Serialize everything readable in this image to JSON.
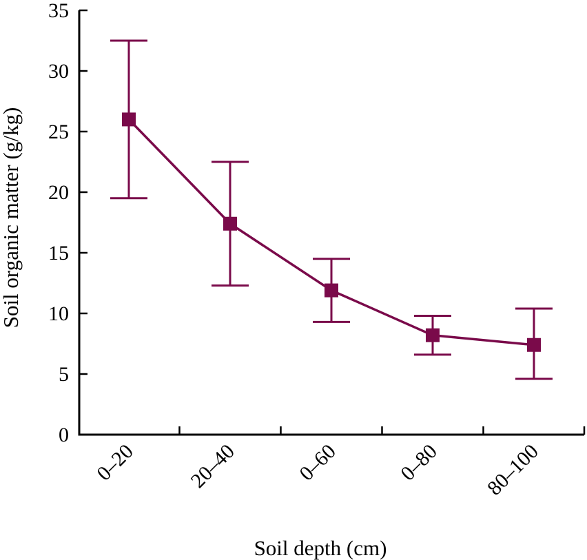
{
  "chart_data": {
    "type": "line",
    "title": "",
    "xlabel": "Soil depth (cm)",
    "ylabel": "Soil organic matter (g/kg)",
    "categories": [
      "0–20",
      "20–40",
      "0–60",
      "0–80",
      "80–100"
    ],
    "ylim": [
      0,
      35
    ],
    "yticks": [
      0,
      5,
      10,
      15,
      20,
      25,
      30,
      35
    ],
    "grid": false,
    "legend": "none",
    "series": [
      {
        "values": [
          26.0,
          17.4,
          11.9,
          8.2,
          7.4
        ],
        "error_upper": [
          32.5,
          22.5,
          14.5,
          9.8,
          10.4
        ],
        "error_lower": [
          19.5,
          12.3,
          9.3,
          6.6,
          4.6
        ],
        "marker": "square",
        "color": "#7a0a4a"
      }
    ]
  }
}
